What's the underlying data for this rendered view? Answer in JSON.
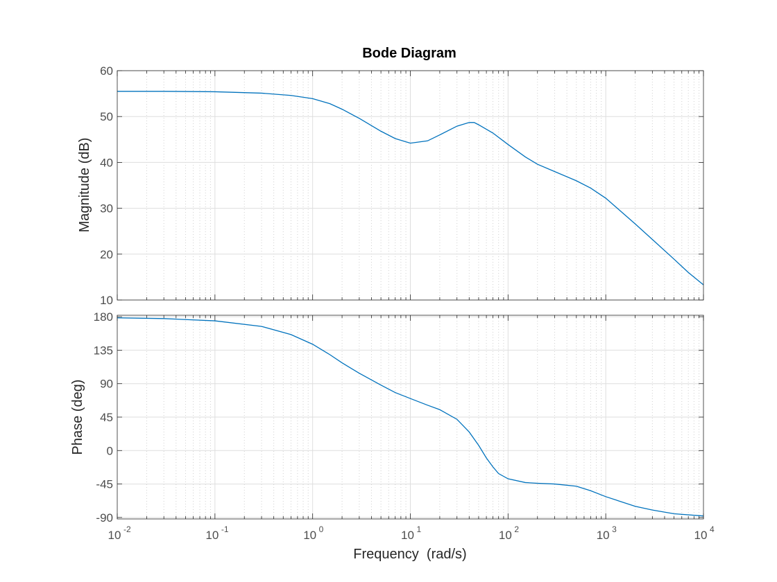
{
  "chart_data": [
    {
      "type": "line",
      "title": "Bode Diagram",
      "ylabel": "Magnitude (dB)",
      "xscale": "log",
      "xlim": [
        0.01,
        10000
      ],
      "ylim": [
        10,
        60
      ],
      "yticks": [
        10,
        20,
        30,
        40,
        50,
        60
      ],
      "grid": true,
      "line_color": "#0072BD",
      "series": [
        {
          "x": [
            0.01,
            0.03,
            0.1,
            0.3,
            0.6,
            1,
            1.5,
            2,
            3,
            5,
            7,
            10,
            15,
            20,
            30,
            40,
            45,
            50,
            70,
            100,
            150,
            200,
            300,
            500,
            700,
            1000,
            2000,
            3000,
            5000,
            7000,
            10000
          ],
          "y": [
            55.5,
            55.5,
            55.4,
            55.1,
            54.6,
            53.9,
            52.8,
            51.6,
            49.6,
            46.8,
            45.2,
            44.2,
            44.7,
            46.0,
            47.9,
            48.7,
            48.7,
            48.2,
            46.4,
            43.9,
            41.2,
            39.6,
            38.0,
            36.0,
            34.4,
            32.2,
            26.6,
            23.2,
            18.9,
            16.0,
            13.3
          ]
        }
      ]
    },
    {
      "type": "line",
      "ylabel": "Phase (deg)",
      "xlabel": "Frequency  (rad/s)",
      "xscale": "log",
      "xlim": [
        0.01,
        10000
      ],
      "ylim": [
        -92,
        182
      ],
      "yticks": [
        -90,
        -45,
        0,
        45,
        90,
        135,
        180
      ],
      "xticks": [
        {
          "value": 0.01,
          "base": "10",
          "exp": "-2"
        },
        {
          "value": 0.1,
          "base": "10",
          "exp": "-1"
        },
        {
          "value": 1,
          "base": "10",
          "exp": "0"
        },
        {
          "value": 10,
          "base": "10",
          "exp": "1"
        },
        {
          "value": 100,
          "base": "10",
          "exp": "2"
        },
        {
          "value": 1000,
          "base": "10",
          "exp": "3"
        },
        {
          "value": 10000,
          "base": "10",
          "exp": "4"
        }
      ],
      "grid": true,
      "line_color": "#0072BD",
      "series": [
        {
          "x": [
            0.01,
            0.03,
            0.1,
            0.3,
            0.6,
            1,
            1.5,
            2,
            3,
            5,
            7,
            10,
            15,
            20,
            30,
            40,
            50,
            60,
            70,
            80,
            100,
            150,
            200,
            300,
            500,
            700,
            1000,
            2000,
            3000,
            5000,
            10000
          ],
          "y": [
            178.5,
            177.5,
            174.5,
            167,
            156,
            143,
            129,
            118,
            104,
            88,
            78,
            70,
            61,
            55,
            42,
            25,
            7,
            -10,
            -22,
            -31,
            -38,
            -43,
            -44,
            -45,
            -48,
            -54,
            -62,
            -75,
            -80,
            -85,
            -88
          ]
        }
      ]
    }
  ]
}
